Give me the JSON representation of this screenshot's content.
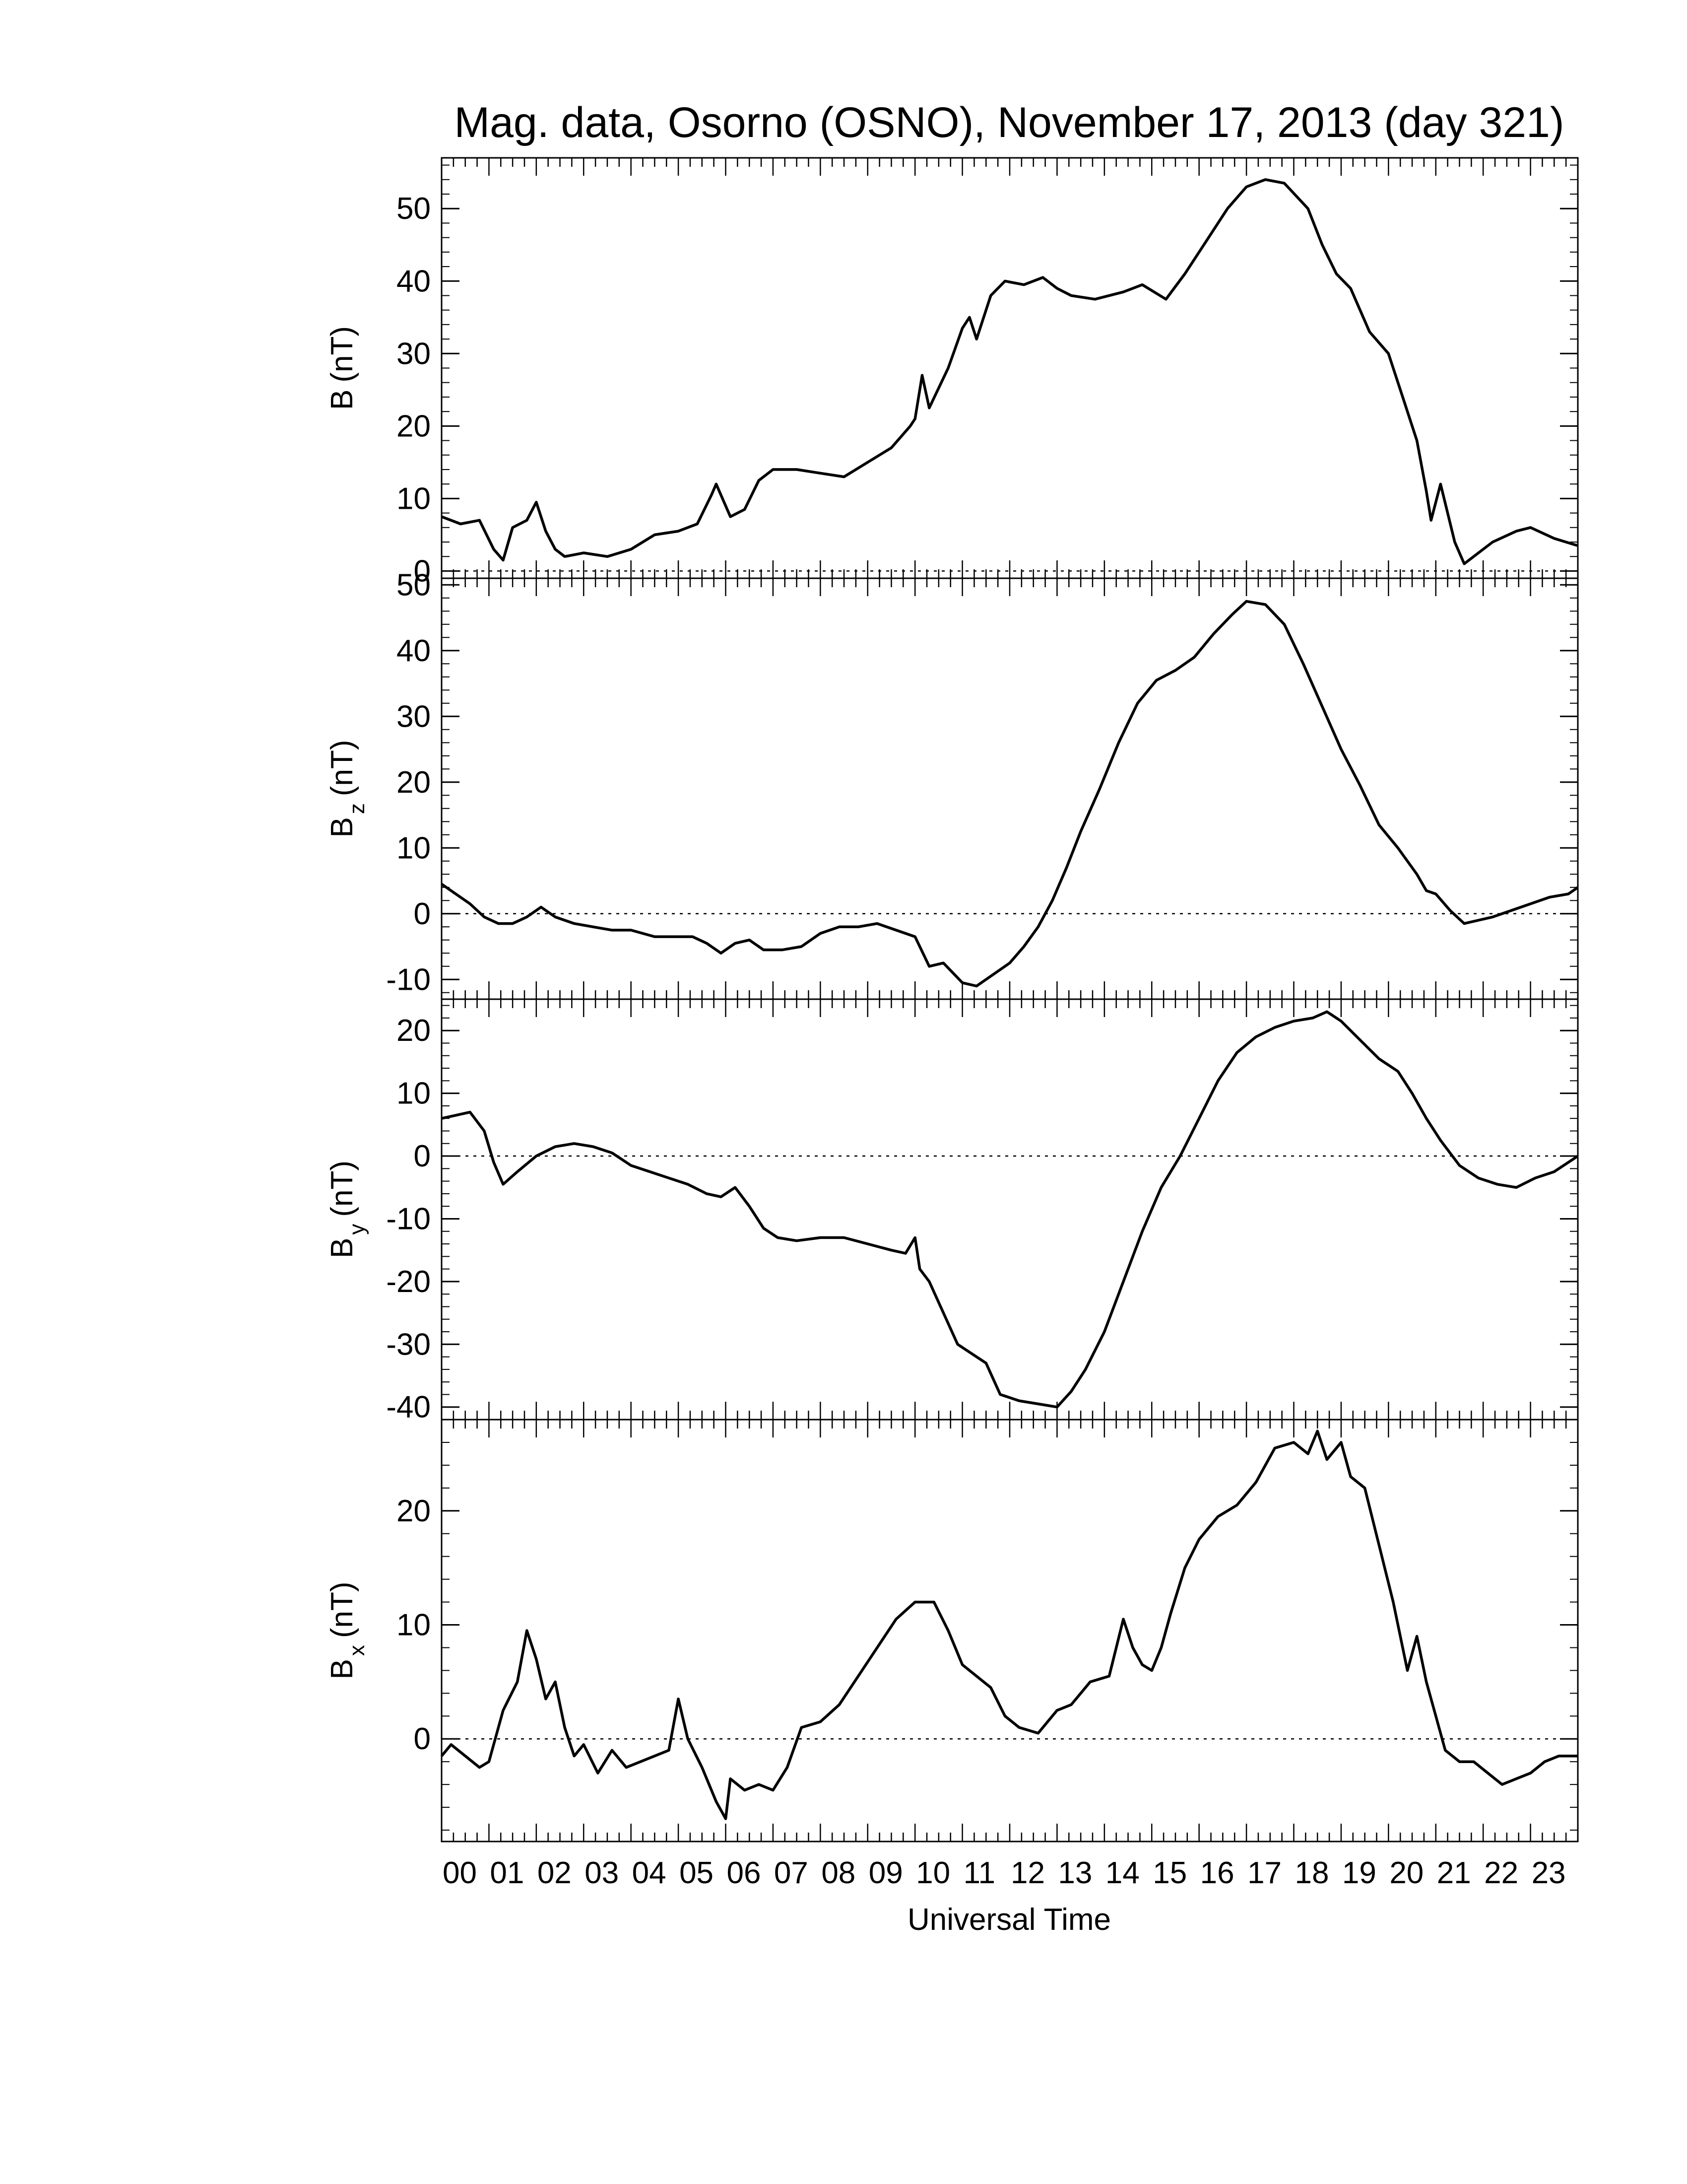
{
  "chart_data": {
    "type": "line",
    "title": "Mag. data, Osorno (OSNO), November 17, 2013 (day 321)",
    "xlabel": "Universal Time",
    "x_tick_labels": [
      "00",
      "01",
      "02",
      "03",
      "04",
      "05",
      "06",
      "07",
      "08",
      "09",
      "10",
      "11",
      "12",
      "13",
      "14",
      "15",
      "16",
      "17",
      "18",
      "19",
      "20",
      "21",
      "22",
      "23"
    ],
    "x_unit": "hours UT",
    "xlim": [
      0,
      24
    ],
    "line_color": "#000000",
    "zero_line": "dotted",
    "panels": [
      {
        "id": "B",
        "ylabel": {
          "base": "B",
          "sub": "",
          "unit": "(nT)"
        },
        "ylim": [
          -1,
          57
        ],
        "yticks": [
          0,
          10,
          20,
          30,
          40,
          50
        ],
        "ytick_labels": [
          "0",
          "10",
          "20",
          "30",
          "40",
          "50"
        ],
        "x": [
          0,
          0.4,
          0.8,
          1.1,
          1.3,
          1.5,
          1.8,
          2.0,
          2.2,
          2.4,
          2.6,
          3.0,
          3.5,
          4.0,
          4.5,
          5.0,
          5.4,
          5.7,
          5.8,
          6.1,
          6.4,
          6.7,
          7.0,
          7.5,
          8.0,
          8.5,
          9.0,
          9.5,
          9.9,
          10.0,
          10.15,
          10.3,
          10.7,
          11.0,
          11.15,
          11.3,
          11.6,
          11.9,
          12.3,
          12.7,
          13.0,
          13.3,
          13.8,
          14.4,
          14.8,
          15.3,
          15.7,
          16.2,
          16.6,
          17.0,
          17.4,
          17.8,
          18.3,
          18.6,
          18.9,
          19.2,
          19.6,
          20.0,
          20.3,
          20.6,
          20.8,
          20.9,
          21.1,
          21.4,
          21.6,
          21.8,
          22.2,
          22.7,
          23.0,
          23.5,
          24.0
        ],
        "y": [
          7.5,
          6.5,
          7.0,
          3.0,
          1.5,
          6.0,
          7.0,
          9.5,
          5.5,
          3.0,
          2.0,
          2.5,
          2.0,
          3.0,
          5.0,
          5.5,
          6.5,
          10.5,
          12.0,
          7.5,
          8.5,
          12.5,
          14.0,
          14.0,
          13.5,
          13.0,
          15.0,
          17.0,
          20.0,
          21.0,
          27.0,
          22.5,
          28.0,
          33.5,
          35.0,
          32.0,
          38.0,
          40.0,
          39.5,
          40.5,
          39.0,
          38.0,
          37.5,
          38.5,
          39.5,
          37.5,
          41.0,
          46.0,
          50.0,
          53.0,
          54.0,
          53.5,
          50.0,
          45.0,
          41.0,
          39.0,
          33.0,
          30.0,
          24.0,
          18.0,
          11.0,
          7.0,
          12.0,
          4.0,
          1.0,
          2.0,
          4.0,
          5.5,
          6.0,
          4.5,
          3.5
        ]
      },
      {
        "id": "Bz",
        "ylabel": {
          "base": "B",
          "sub": "z",
          "unit": "(nT)"
        },
        "ylim": [
          -13,
          51
        ],
        "yticks": [
          -10,
          0,
          10,
          20,
          30,
          40,
          50
        ],
        "ytick_labels": [
          "-10",
          "0",
          "10",
          "20",
          "30",
          "40",
          "50"
        ],
        "x": [
          0,
          0.3,
          0.6,
          0.9,
          1.2,
          1.5,
          1.8,
          2.1,
          2.4,
          2.8,
          3.2,
          3.6,
          4.0,
          4.5,
          5.0,
          5.3,
          5.6,
          5.9,
          6.2,
          6.5,
          6.8,
          7.2,
          7.6,
          8.0,
          8.4,
          8.8,
          9.2,
          9.6,
          10.0,
          10.3,
          10.6,
          11.0,
          11.3,
          11.7,
          12.0,
          12.3,
          12.6,
          12.9,
          13.2,
          13.5,
          13.9,
          14.3,
          14.7,
          15.1,
          15.5,
          15.9,
          16.3,
          16.7,
          17.0,
          17.4,
          17.8,
          18.2,
          18.6,
          19.0,
          19.4,
          19.8,
          20.2,
          20.6,
          20.8,
          21.0,
          21.3,
          21.6,
          21.9,
          22.2,
          22.6,
          23.0,
          23.4,
          23.8,
          24.0
        ],
        "y": [
          4.5,
          3.0,
          1.5,
          -0.5,
          -1.5,
          -1.5,
          -0.5,
          1.0,
          -0.5,
          -1.5,
          -2.0,
          -2.5,
          -2.5,
          -3.5,
          -3.5,
          -3.5,
          -4.5,
          -6.0,
          -4.5,
          -4.0,
          -5.5,
          -5.5,
          -5.0,
          -3.0,
          -2.0,
          -2.0,
          -1.5,
          -2.5,
          -3.5,
          -8.0,
          -7.5,
          -10.5,
          -11.0,
          -9.0,
          -7.5,
          -5.0,
          -2.0,
          2.0,
          7.0,
          12.5,
          19.0,
          26.0,
          32.0,
          35.5,
          37.0,
          39.0,
          42.5,
          45.5,
          47.5,
          47.0,
          44.0,
          38.0,
          31.5,
          25.0,
          19.5,
          13.5,
          10.0,
          6.0,
          3.5,
          3.0,
          0.5,
          -1.5,
          -1.0,
          -0.5,
          0.5,
          1.5,
          2.5,
          3.0,
          4.0
        ]
      },
      {
        "id": "By",
        "ylabel": {
          "base": "B",
          "sub": "y",
          "unit": "(nT)"
        },
        "ylim": [
          -42,
          25
        ],
        "yticks": [
          -40,
          -30,
          -20,
          -10,
          0,
          10,
          20
        ],
        "ytick_labels": [
          "-40",
          "-30",
          "-20",
          "-10",
          "0",
          "10",
          "20"
        ],
        "x": [
          0,
          0.3,
          0.6,
          0.9,
          1.1,
          1.3,
          1.6,
          2.0,
          2.4,
          2.8,
          3.2,
          3.6,
          4.0,
          4.4,
          4.8,
          5.2,
          5.6,
          5.9,
          6.2,
          6.5,
          6.8,
          7.1,
          7.5,
          8.0,
          8.5,
          9.0,
          9.5,
          9.8,
          10.0,
          10.1,
          10.3,
          10.6,
          10.9,
          11.2,
          11.5,
          11.8,
          12.2,
          12.6,
          13.0,
          13.3,
          13.6,
          14.0,
          14.4,
          14.8,
          15.2,
          15.6,
          16.0,
          16.4,
          16.8,
          17.2,
          17.6,
          18.0,
          18.4,
          18.7,
          19.0,
          19.4,
          19.8,
          20.2,
          20.5,
          20.8,
          21.1,
          21.5,
          21.9,
          22.3,
          22.7,
          23.1,
          23.5,
          23.8,
          24.0
        ],
        "y": [
          6.0,
          6.5,
          7.0,
          4.0,
          -1.0,
          -4.5,
          -2.5,
          0.0,
          1.5,
          2.0,
          1.5,
          0.5,
          -1.5,
          -2.5,
          -3.5,
          -4.5,
          -6.0,
          -6.5,
          -5.0,
          -8.0,
          -11.5,
          -13.0,
          -13.5,
          -13.0,
          -13.0,
          -14.0,
          -15.0,
          -15.5,
          -13.0,
          -18.0,
          -20.0,
          -25.0,
          -30.0,
          -31.5,
          -33.0,
          -38.0,
          -39.0,
          -39.5,
          -40.0,
          -37.5,
          -34.0,
          -28.0,
          -20.0,
          -12.0,
          -5.0,
          0.0,
          6.0,
          12.0,
          16.5,
          19.0,
          20.5,
          21.5,
          22.0,
          23.0,
          21.5,
          18.5,
          15.5,
          13.5,
          10.0,
          6.0,
          2.5,
          -1.5,
          -3.5,
          -4.5,
          -5.0,
          -3.5,
          -2.5,
          -1.0,
          0.0
        ]
      },
      {
        "id": "Bx",
        "ylabel": {
          "base": "B",
          "sub": "x",
          "unit": "(nT)"
        },
        "ylim": [
          -9,
          28
        ],
        "yticks": [
          0,
          10,
          20
        ],
        "ytick_labels": [
          "0",
          "10",
          "20"
        ],
        "x": [
          0,
          0.2,
          0.5,
          0.8,
          1.0,
          1.3,
          1.6,
          1.8,
          2.0,
          2.2,
          2.4,
          2.6,
          2.8,
          3.0,
          3.3,
          3.6,
          3.9,
          4.2,
          4.5,
          4.8,
          5.0,
          5.2,
          5.5,
          5.8,
          6.0,
          6.1,
          6.4,
          6.7,
          7.0,
          7.3,
          7.6,
          8.0,
          8.4,
          8.8,
          9.2,
          9.6,
          10.0,
          10.4,
          10.7,
          11.0,
          11.3,
          11.6,
          11.9,
          12.2,
          12.6,
          13.0,
          13.3,
          13.7,
          14.1,
          14.4,
          14.6,
          14.8,
          15.0,
          15.2,
          15.4,
          15.7,
          16.0,
          16.4,
          16.8,
          17.2,
          17.6,
          18.0,
          18.3,
          18.5,
          18.7,
          19.0,
          19.2,
          19.5,
          19.8,
          20.1,
          20.4,
          20.6,
          20.8,
          21.0,
          21.2,
          21.5,
          21.8,
          22.1,
          22.4,
          22.7,
          23.0,
          23.3,
          23.6,
          24.0
        ],
        "y": [
          -1.5,
          -0.5,
          -1.5,
          -2.5,
          -2.0,
          2.5,
          5.0,
          9.5,
          7.0,
          3.5,
          5.0,
          1.0,
          -1.5,
          -0.5,
          -3.0,
          -1.0,
          -2.5,
          -2.0,
          -1.5,
          -1.0,
          3.5,
          0.0,
          -2.5,
          -5.5,
          -7.0,
          -3.5,
          -4.5,
          -4.0,
          -4.5,
          -2.5,
          1.0,
          1.5,
          3.0,
          5.5,
          8.0,
          10.5,
          12.0,
          12.0,
          9.5,
          6.5,
          5.5,
          4.5,
          2.0,
          1.0,
          0.5,
          2.5,
          3.0,
          5.0,
          5.5,
          10.5,
          8.0,
          6.5,
          6.0,
          8.0,
          11.0,
          15.0,
          17.5,
          19.5,
          20.5,
          22.5,
          25.5,
          26.0,
          25.0,
          27.0,
          24.5,
          26.0,
          23.0,
          22.0,
          17.0,
          12.0,
          6.0,
          9.0,
          5.0,
          2.0,
          -1.0,
          -2.0,
          -2.0,
          -3.0,
          -4.0,
          -3.5,
          -3.0,
          -2.0,
          -1.5,
          -1.5
        ]
      }
    ]
  }
}
